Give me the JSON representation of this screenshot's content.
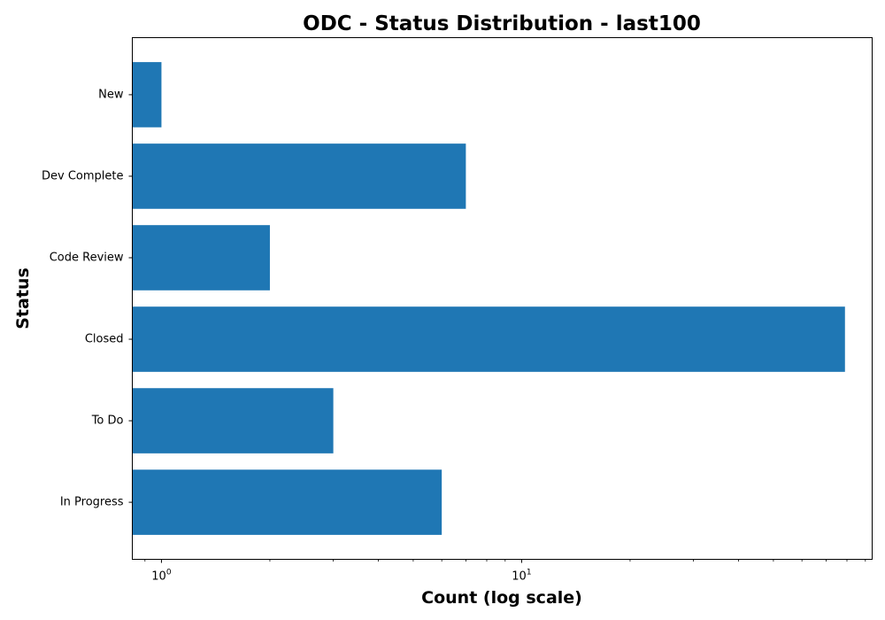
{
  "chart_data": {
    "type": "bar",
    "orientation": "horizontal",
    "title": "ODC - Status Distribution - last100",
    "xlabel": "Count (log scale)",
    "ylabel": "Status",
    "x_scale": "log",
    "xlim": [
      0.83,
      94
    ],
    "x_major_ticks": [
      {
        "base": "10",
        "exp": "0",
        "value": 1
      },
      {
        "base": "10",
        "exp": "1",
        "value": 10
      }
    ],
    "categories": [
      "New",
      "Dev Complete",
      "Code Review",
      "Closed",
      "To Do",
      "In Progress"
    ],
    "values": [
      1,
      7,
      2,
      79,
      3,
      6
    ],
    "bar_color": "#1f77b4",
    "grid": false,
    "legend": false
  }
}
